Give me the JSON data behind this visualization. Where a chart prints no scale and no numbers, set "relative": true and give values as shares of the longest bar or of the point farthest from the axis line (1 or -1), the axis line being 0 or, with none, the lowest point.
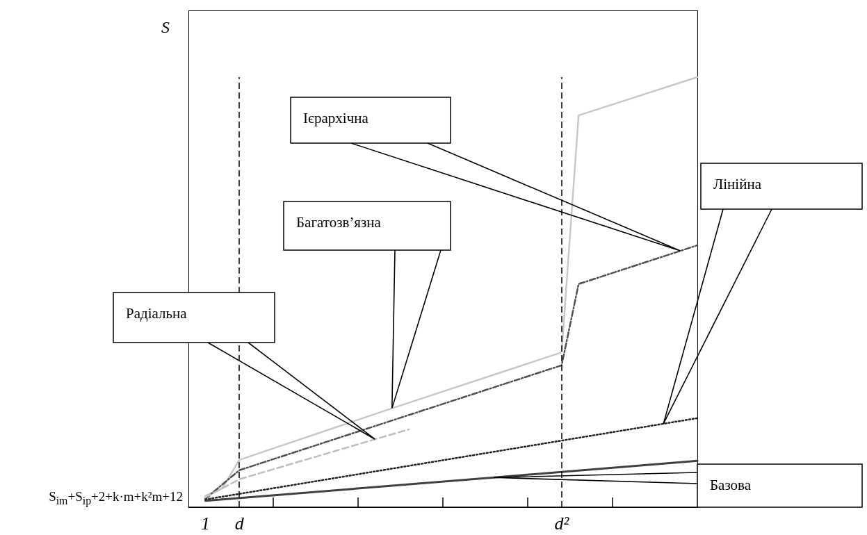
{
  "chart_data": {
    "type": "line",
    "ylabel": "S",
    "relative": true,
    "categories": [
      null,
      "1",
      null,
      "d",
      null,
      null,
      null,
      null,
      null,
      null,
      null,
      null,
      null,
      null,
      null,
      null,
      null,
      null,
      null,
      null,
      null,
      null,
      "d²",
      null,
      null,
      null,
      null,
      null,
      null,
      null,
      null
    ],
    "series": [
      {
        "color": "#c8c8c8",
        "line_style": "solid",
        "values": [
          null,
          0.027,
          0.044,
          0.11,
          null,
          null,
          null,
          null,
          null,
          null,
          null,
          null,
          0.23,
          null,
          null,
          null,
          null,
          null,
          null,
          null,
          null,
          null,
          0.36,
          0.911,
          null,
          null,
          null,
          null,
          null,
          null,
          1
        ]
      },
      {
        "color": "#505050",
        "line_style": "dashdot",
        "values": [
          null,
          0.019,
          0.053,
          0.086,
          null,
          null,
          null,
          null,
          null,
          null,
          null,
          null,
          null,
          null,
          null,
          null,
          null,
          null,
          null,
          null,
          null,
          null,
          0.33,
          0.519,
          null,
          null,
          null,
          null,
          null,
          0.596,
          0.609
        ]
      },
      {
        "color": "#bebebe",
        "line_style": "dashed",
        "values": [
          null,
          0.023,
          null,
          0.065,
          null,
          null,
          null,
          null,
          null,
          null,
          null,
          0.158,
          null,
          0.181,
          null,
          null,
          null,
          null,
          null,
          null,
          null,
          null,
          null,
          null,
          null,
          null,
          null,
          null,
          null,
          null,
          null
        ]
      },
      {
        "color": "#202020",
        "line_style": "dotted",
        "values": [
          null,
          0.018,
          null,
          null,
          null,
          null,
          null,
          null,
          null,
          null,
          null,
          null,
          null,
          null,
          null,
          null,
          null,
          null,
          null,
          null,
          null,
          null,
          null,
          null,
          null,
          null,
          null,
          null,
          0.194,
          null,
          0.207
        ]
      },
      {
        "color": "#404040",
        "line_style": "solid",
        "values": [
          null,
          0.015,
          null,
          null,
          null,
          null,
          null,
          null,
          null,
          null,
          null,
          null,
          null,
          null,
          null,
          null,
          null,
          null,
          0.069,
          null,
          null,
          null,
          null,
          null,
          null,
          null,
          null,
          null,
          null,
          null,
          0.108
        ]
      }
    ],
    "ref_lines": [
      {
        "axis": "x",
        "value": "d",
        "color": "#000000",
        "line_style": "dashed"
      },
      {
        "axis": "x",
        "value": "d²",
        "color": "#000000",
        "line_style": "dashed"
      }
    ],
    "annotations": [
      "S$_{im}$+S$_{ip}$+2+k·m+k²m+12",
      "Ієрархічна",
      "Багатозв’язна",
      "Радіальна",
      "Лінійна",
      "Базова"
    ],
    "marker": "none",
    "grid": false
  }
}
